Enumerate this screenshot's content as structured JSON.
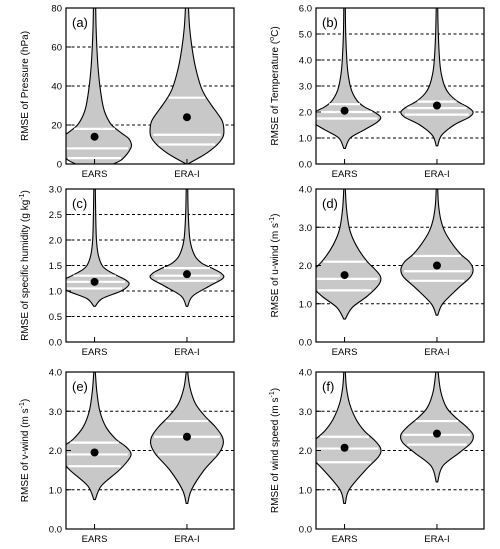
{
  "chart_data": [
    {
      "type": "violin",
      "panel_label": "(a)",
      "ylabel_main": "RMSE of Pressure (hPa)",
      "ylabel_sup": "",
      "ylabel_tail": "",
      "ylim": [
        0,
        80
      ],
      "yticks": [
        "0",
        "20",
        "40",
        "60",
        "80"
      ],
      "grid_y": [
        20,
        40,
        60,
        80
      ],
      "categories": [
        "EARS",
        "ERA-I"
      ],
      "violins": [
        {
          "mean": 14,
          "quantiles": [
            3,
            8,
            18
          ],
          "extent": [
            0,
            80
          ],
          "profile": [
            [
              0,
              0.5
            ],
            [
              2,
              0.7
            ],
            [
              5,
              0.85
            ],
            [
              8,
              0.95
            ],
            [
              10,
              0.97
            ],
            [
              13,
              0.9
            ],
            [
              16,
              0.7
            ],
            [
              20,
              0.45
            ],
            [
              25,
              0.3
            ],
            [
              30,
              0.22
            ],
            [
              40,
              0.14
            ],
            [
              50,
              0.09
            ],
            [
              60,
              0.06
            ],
            [
              70,
              0.04
            ],
            [
              80,
              0.03
            ]
          ]
        },
        {
          "mean": 24,
          "quantiles": [
            10,
            15,
            34
          ],
          "extent": [
            0,
            80
          ],
          "profile": [
            [
              0,
              0.02
            ],
            [
              3,
              0.3
            ],
            [
              6,
              0.55
            ],
            [
              10,
              0.8
            ],
            [
              14,
              0.95
            ],
            [
              18,
              0.97
            ],
            [
              22,
              0.93
            ],
            [
              26,
              0.8
            ],
            [
              30,
              0.65
            ],
            [
              35,
              0.48
            ],
            [
              40,
              0.36
            ],
            [
              50,
              0.22
            ],
            [
              60,
              0.13
            ],
            [
              70,
              0.07
            ],
            [
              80,
              0.04
            ]
          ]
        }
      ]
    },
    {
      "type": "violin",
      "panel_label": "(b)",
      "ylabel_main": "RMSE of Temperature (",
      "ylabel_sup": "o",
      "ylabel_tail": "C)",
      "ylim": [
        0,
        6
      ],
      "yticks": [
        "0.0",
        "1.0",
        "2.0",
        "3.0",
        "4.0",
        "5.0",
        "6.0"
      ],
      "grid_y": [
        1,
        2,
        3,
        4,
        5
      ],
      "categories": [
        "EARS",
        "ERA-I"
      ],
      "violins": [
        {
          "mean": 2.05,
          "quantiles": [
            1.75,
            2.0,
            2.3
          ],
          "extent": [
            0.6,
            6.0
          ],
          "profile": [
            [
              0.6,
              0.02
            ],
            [
              1.0,
              0.15
            ],
            [
              1.3,
              0.5
            ],
            [
              1.6,
              0.85
            ],
            [
              1.8,
              0.95
            ],
            [
              2.0,
              0.78
            ],
            [
              2.2,
              0.52
            ],
            [
              2.4,
              0.35
            ],
            [
              2.7,
              0.22
            ],
            [
              3.0,
              0.15
            ],
            [
              3.5,
              0.09
            ],
            [
              4.0,
              0.06
            ],
            [
              5.0,
              0.03
            ],
            [
              6.0,
              0.02
            ]
          ]
        },
        {
          "mean": 2.25,
          "quantiles": [
            1.9,
            2.15,
            2.4
          ],
          "extent": [
            0.7,
            6.0
          ],
          "profile": [
            [
              0.7,
              0.02
            ],
            [
              1.1,
              0.12
            ],
            [
              1.5,
              0.45
            ],
            [
              1.8,
              0.85
            ],
            [
              2.0,
              0.95
            ],
            [
              2.2,
              0.8
            ],
            [
              2.4,
              0.55
            ],
            [
              2.7,
              0.32
            ],
            [
              3.0,
              0.2
            ],
            [
              3.5,
              0.11
            ],
            [
              4.0,
              0.07
            ],
            [
              5.0,
              0.035
            ],
            [
              6.0,
              0.02
            ]
          ]
        }
      ]
    },
    {
      "type": "violin",
      "panel_label": "(c)",
      "ylabel_main": "RMSE of specific humidity (g kg",
      "ylabel_sup": "-1",
      "ylabel_tail": ")",
      "ylim": [
        0,
        3
      ],
      "yticks": [
        "0.0",
        "0.5",
        "1.0",
        "1.5",
        "2.0",
        "2.5",
        "3.0"
      ],
      "grid_y": [
        0.5,
        1.0,
        1.5,
        2.0,
        2.5
      ],
      "categories": [
        "EARS",
        "ERA-I"
      ],
      "violins": [
        {
          "mean": 1.18,
          "quantiles": [
            1.05,
            1.18,
            1.3
          ],
          "extent": [
            0.7,
            3.0
          ],
          "profile": [
            [
              0.7,
              0.02
            ],
            [
              0.85,
              0.2
            ],
            [
              1.0,
              0.7
            ],
            [
              1.12,
              0.9
            ],
            [
              1.2,
              0.85
            ],
            [
              1.3,
              0.6
            ],
            [
              1.4,
              0.35
            ],
            [
              1.5,
              0.2
            ],
            [
              1.7,
              0.1
            ],
            [
              2.0,
              0.05
            ],
            [
              2.5,
              0.03
            ],
            [
              3.0,
              0.02
            ]
          ]
        },
        {
          "mean": 1.33,
          "quantiles": [
            1.2,
            1.3,
            1.45
          ],
          "extent": [
            0.7,
            3.0
          ],
          "profile": [
            [
              0.7,
              0.02
            ],
            [
              0.9,
              0.15
            ],
            [
              1.1,
              0.6
            ],
            [
              1.25,
              0.95
            ],
            [
              1.35,
              0.9
            ],
            [
              1.45,
              0.65
            ],
            [
              1.55,
              0.38
            ],
            [
              1.7,
              0.2
            ],
            [
              2.0,
              0.08
            ],
            [
              2.5,
              0.035
            ],
            [
              3.0,
              0.02
            ]
          ]
        }
      ]
    },
    {
      "type": "violin",
      "panel_label": "(d)",
      "ylabel_main": "RMSE of u-wind (m s",
      "ylabel_sup": "-1",
      "ylabel_tail": ")",
      "ylim": [
        0,
        4
      ],
      "yticks": [
        "0.0",
        "1.0",
        "2.0",
        "3.0",
        "4.0"
      ],
      "grid_y": [
        1,
        2,
        3
      ],
      "categories": [
        "EARS",
        "ERA-I"
      ],
      "violins": [
        {
          "mean": 1.75,
          "quantiles": [
            1.35,
            1.65,
            2.1
          ],
          "extent": [
            0.6,
            4.0
          ],
          "profile": [
            [
              0.6,
              0.02
            ],
            [
              0.9,
              0.2
            ],
            [
              1.2,
              0.6
            ],
            [
              1.5,
              0.9
            ],
            [
              1.7,
              0.95
            ],
            [
              1.9,
              0.8
            ],
            [
              2.1,
              0.6
            ],
            [
              2.4,
              0.38
            ],
            [
              2.7,
              0.22
            ],
            [
              3.0,
              0.12
            ],
            [
              3.5,
              0.05
            ],
            [
              4.0,
              0.02
            ]
          ]
        },
        {
          "mean": 2.0,
          "quantiles": [
            1.6,
            1.85,
            2.25
          ],
          "extent": [
            0.7,
            4.0
          ],
          "profile": [
            [
              0.7,
              0.02
            ],
            [
              1.0,
              0.15
            ],
            [
              1.4,
              0.55
            ],
            [
              1.7,
              0.88
            ],
            [
              1.9,
              0.95
            ],
            [
              2.1,
              0.85
            ],
            [
              2.3,
              0.62
            ],
            [
              2.6,
              0.38
            ],
            [
              2.9,
              0.2
            ],
            [
              3.2,
              0.1
            ],
            [
              3.6,
              0.04
            ],
            [
              4.0,
              0.02
            ]
          ]
        }
      ]
    },
    {
      "type": "violin",
      "panel_label": "(e)",
      "ylabel_main": "RMSE of v-wind (m s",
      "ylabel_sup": "-1",
      "ylabel_tail": ")",
      "ylim": [
        0,
        4
      ],
      "yticks": [
        "0.0",
        "1.0",
        "2.0",
        "3.0",
        "4.0"
      ],
      "grid_y": [
        1,
        2,
        3
      ],
      "categories": [
        "EARS",
        "ERA-I"
      ],
      "violins": [
        {
          "mean": 1.95,
          "quantiles": [
            1.6,
            1.9,
            2.2
          ],
          "extent": [
            0.75,
            4.0
          ],
          "profile": [
            [
              0.75,
              0.02
            ],
            [
              1.1,
              0.18
            ],
            [
              1.5,
              0.65
            ],
            [
              1.8,
              0.92
            ],
            [
              1.95,
              0.95
            ],
            [
              2.1,
              0.82
            ],
            [
              2.3,
              0.55
            ],
            [
              2.6,
              0.3
            ],
            [
              3.0,
              0.14
            ],
            [
              3.5,
              0.06
            ],
            [
              4.0,
              0.02
            ]
          ]
        },
        {
          "mean": 2.35,
          "quantiles": [
            1.9,
            2.35,
            2.75
          ],
          "extent": [
            0.65,
            4.0
          ],
          "profile": [
            [
              0.65,
              0.02
            ],
            [
              1.0,
              0.12
            ],
            [
              1.5,
              0.45
            ],
            [
              1.9,
              0.82
            ],
            [
              2.15,
              0.95
            ],
            [
              2.35,
              0.93
            ],
            [
              2.6,
              0.75
            ],
            [
              2.9,
              0.45
            ],
            [
              3.2,
              0.22
            ],
            [
              3.6,
              0.08
            ],
            [
              4.0,
              0.02
            ]
          ]
        }
      ]
    },
    {
      "type": "violin",
      "panel_label": "(f)",
      "ylabel_main": "RMSE of wind speed (m s",
      "ylabel_sup": "-1",
      "ylabel_tail": ")",
      "ylim": [
        0,
        4
      ],
      "yticks": [
        "0.0",
        "1.0",
        "2.0",
        "3.0",
        "4.0"
      ],
      "grid_y": [
        1,
        2,
        3
      ],
      "categories": [
        "EARS",
        "ERA-I"
      ],
      "violins": [
        {
          "mean": 2.07,
          "quantiles": [
            1.7,
            2.05,
            2.35
          ],
          "extent": [
            0.65,
            4.0
          ],
          "profile": [
            [
              0.65,
              0.02
            ],
            [
              1.0,
              0.12
            ],
            [
              1.5,
              0.55
            ],
            [
              1.85,
              0.9
            ],
            [
              2.05,
              0.95
            ],
            [
              2.25,
              0.8
            ],
            [
              2.5,
              0.52
            ],
            [
              2.8,
              0.3
            ],
            [
              3.2,
              0.13
            ],
            [
              3.6,
              0.05
            ],
            [
              4.0,
              0.02
            ]
          ]
        },
        {
          "mean": 2.43,
          "quantiles": [
            2.15,
            2.4,
            2.75
          ],
          "extent": [
            1.2,
            4.0
          ],
          "profile": [
            [
              1.2,
              0.02
            ],
            [
              1.6,
              0.15
            ],
            [
              1.95,
              0.6
            ],
            [
              2.2,
              0.9
            ],
            [
              2.4,
              0.95
            ],
            [
              2.6,
              0.78
            ],
            [
              2.85,
              0.48
            ],
            [
              3.1,
              0.25
            ],
            [
              3.5,
              0.1
            ],
            [
              4.0,
              0.03
            ]
          ]
        }
      ]
    }
  ]
}
